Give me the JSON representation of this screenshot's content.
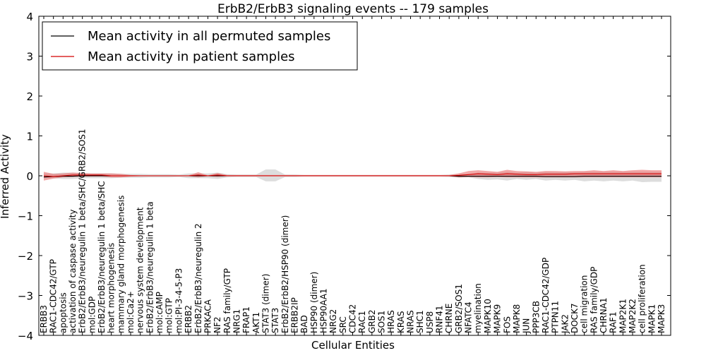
{
  "chart_data": {
    "type": "line",
    "title": "ErbB2/ErbB3 signaling events -- 179 samples",
    "xlabel": "Cellular Entities",
    "ylabel": "Inferred Activity",
    "ylim": [
      -4,
      4
    ],
    "yticks": [
      -4,
      -3,
      -2,
      -1,
      0,
      1,
      2,
      3,
      4
    ],
    "ytick_labels": [
      "−4",
      "−3",
      "−2",
      "−1",
      "0",
      "1",
      "2",
      "3",
      "4"
    ],
    "legend_position": "top-left",
    "categories": [
      "ERBB3",
      "RAC1-CDC42/GTP",
      "apoptosis",
      "activation of caspase activity",
      "ErbB2/ErbB3/neuregulin 1 beta/SHC/GRB2/SOS1",
      "mol:GDP",
      "ErbB2/ErbB3/neuregulin 1 beta/SHC",
      "heart morphogenesis",
      "mammary gland morphogenesis",
      "mol:Ca2+",
      "nervous system development",
      "ErbB2/ErbB3/neuregulin 1 beta",
      "mol:cAMP",
      "mol:GTP",
      "mol:PI-3-4-5-P3",
      "ERBB2",
      "ErbB2/ErbB3/neuregulin 2",
      "PRKACA",
      "NF2",
      "RAS family/GTP",
      "NRG1",
      "FRAP1",
      "AKT1",
      "STAT3 (dimer)",
      "STAT3",
      "ErbB2/ErbB2/HSP90 (dimer)",
      "ERBB2IP",
      "BAD",
      "HSP90 (dimer)",
      "HSP90AA1",
      "NRG2",
      "SRC",
      "CDC42",
      "RAC1",
      "GRB2",
      "SOS1",
      "HRAS",
      "KRAS",
      "NRAS",
      "SHC1",
      "USP8",
      "RNF41",
      "CHRNE",
      "GRB2/SOS1",
      "NFATC4",
      "myelination",
      "MAPK10",
      "MAPK9",
      "FOS",
      "MAPK8",
      "JUN",
      "PPP3CB",
      "RAC1-CDC42/GDP",
      "PTPN11",
      "JAK2",
      "DOCK7",
      "cell migration",
      "RAS family/GDP",
      "CHRNA1",
      "RAF1",
      "MAP2K1",
      "MAP2K2",
      "cell proliferation",
      "MAPK1",
      "MAPK3"
    ],
    "series": [
      {
        "name": "Mean activity in all permuted samples",
        "color": "#000000",
        "values": [
          -0.03,
          -0.02,
          -0.01,
          -0.01,
          0.0,
          0.0,
          0.0,
          0.0,
          0.0,
          0.0,
          0.0,
          0.0,
          0.0,
          0.0,
          0.0,
          0.0,
          0.0,
          0.0,
          0.0,
          0.0,
          0.0,
          0.0,
          0.0,
          0.0,
          0.0,
          0.0,
          0.0,
          0.0,
          0.0,
          0.0,
          0.0,
          0.0,
          0.0,
          0.0,
          0.0,
          0.0,
          0.0,
          0.0,
          0.0,
          0.0,
          0.0,
          0.0,
          0.0,
          -0.01,
          -0.01,
          -0.01,
          -0.01,
          -0.01,
          -0.01,
          -0.01,
          -0.01,
          -0.01,
          -0.02,
          -0.02,
          -0.02,
          -0.02,
          -0.01,
          -0.01,
          -0.01,
          -0.01,
          -0.01,
          -0.01,
          -0.01,
          -0.01,
          -0.01
        ],
        "band_low": [
          -0.06,
          -0.06,
          -0.08,
          -0.08,
          -0.06,
          -0.06,
          -0.06,
          -0.06,
          -0.05,
          -0.05,
          -0.05,
          -0.04,
          -0.04,
          -0.04,
          -0.03,
          -0.06,
          -0.06,
          -0.06,
          -0.08,
          -0.04,
          -0.03,
          -0.03,
          -0.03,
          -0.14,
          -0.14,
          -0.03,
          -0.03,
          -0.02,
          -0.02,
          -0.02,
          -0.02,
          -0.02,
          -0.02,
          -0.02,
          -0.02,
          -0.02,
          -0.02,
          -0.02,
          -0.02,
          -0.02,
          -0.02,
          -0.02,
          -0.03,
          -0.05,
          -0.04,
          -0.08,
          -0.1,
          -0.09,
          -0.12,
          -0.08,
          -0.1,
          -0.08,
          -0.12,
          -0.1,
          -0.12,
          -0.1,
          -0.14,
          -0.12,
          -0.14,
          -0.12,
          -0.14,
          -0.12,
          -0.16,
          -0.15,
          -0.15
        ],
        "band_high": [
          0.06,
          0.06,
          0.08,
          0.08,
          0.06,
          0.06,
          0.06,
          0.06,
          0.05,
          0.05,
          0.05,
          0.04,
          0.04,
          0.04,
          0.03,
          0.06,
          0.06,
          0.06,
          0.08,
          0.04,
          0.03,
          0.03,
          0.03,
          0.16,
          0.16,
          0.03,
          0.03,
          0.02,
          0.02,
          0.02,
          0.02,
          0.02,
          0.02,
          0.02,
          0.02,
          0.02,
          0.02,
          0.02,
          0.02,
          0.02,
          0.02,
          0.02,
          0.03,
          0.05,
          0.04,
          0.08,
          0.08,
          0.08,
          0.1,
          0.08,
          0.1,
          0.08,
          0.1,
          0.09,
          0.1,
          0.09,
          0.1,
          0.1,
          0.1,
          0.1,
          0.1,
          0.1,
          0.1,
          0.1,
          0.1
        ]
      },
      {
        "name": "Mean activity in patient samples",
        "color": "#d40000",
        "values": [
          0.0,
          -0.02,
          0.0,
          0.02,
          0.02,
          0.02,
          0.02,
          0.0,
          0.0,
          0.0,
          0.0,
          0.0,
          0.0,
          0.0,
          0.0,
          0.0,
          0.02,
          0.0,
          0.02,
          0.0,
          0.0,
          0.0,
          0.0,
          0.0,
          0.0,
          0.0,
          0.0,
          0.0,
          0.0,
          0.0,
          0.0,
          0.0,
          0.0,
          0.0,
          0.0,
          0.0,
          0.0,
          0.0,
          0.0,
          0.0,
          0.0,
          0.0,
          0.0,
          0.01,
          0.03,
          0.05,
          0.04,
          0.03,
          0.05,
          0.04,
          0.03,
          0.03,
          0.04,
          0.04,
          0.04,
          0.05,
          0.05,
          0.05,
          0.05,
          0.05,
          0.05,
          0.05,
          0.05,
          0.05,
          0.05
        ],
        "band_low": [
          -0.12,
          -0.07,
          -0.04,
          -0.03,
          -0.02,
          -0.02,
          -0.02,
          -0.04,
          -0.04,
          -0.02,
          -0.01,
          -0.01,
          -0.01,
          -0.01,
          -0.01,
          -0.01,
          -0.04,
          -0.01,
          -0.03,
          -0.01,
          -0.01,
          -0.01,
          -0.01,
          -0.01,
          -0.01,
          -0.01,
          -0.01,
          -0.01,
          -0.01,
          -0.01,
          -0.01,
          -0.01,
          -0.01,
          -0.01,
          -0.01,
          -0.01,
          -0.01,
          -0.01,
          -0.01,
          -0.01,
          -0.01,
          -0.01,
          -0.01,
          -0.04,
          -0.03,
          -0.04,
          -0.04,
          -0.03,
          -0.04,
          -0.04,
          -0.04,
          -0.04,
          -0.04,
          -0.04,
          -0.04,
          -0.04,
          -0.04,
          -0.04,
          -0.04,
          -0.04,
          -0.04,
          -0.04,
          -0.04,
          -0.04,
          -0.04
        ],
        "band_high": [
          0.1,
          0.05,
          0.06,
          0.08,
          0.07,
          0.06,
          0.06,
          0.06,
          0.05,
          0.02,
          0.01,
          0.01,
          0.01,
          0.01,
          0.01,
          0.01,
          0.09,
          0.01,
          0.07,
          0.02,
          0.02,
          0.02,
          0.02,
          0.02,
          0.02,
          0.02,
          0.02,
          0.02,
          0.02,
          0.02,
          0.02,
          0.02,
          0.02,
          0.02,
          0.02,
          0.02,
          0.02,
          0.02,
          0.02,
          0.02,
          0.02,
          0.02,
          0.02,
          0.06,
          0.12,
          0.14,
          0.12,
          0.1,
          0.15,
          0.12,
          0.11,
          0.1,
          0.12,
          0.12,
          0.11,
          0.12,
          0.12,
          0.14,
          0.12,
          0.14,
          0.12,
          0.14,
          0.15,
          0.14,
          0.14
        ]
      }
    ],
    "colors": {
      "permuted_line": "#000000",
      "permuted_band": "#b4b4b4",
      "patient_line": "#d40000",
      "patient_band": "#e86060"
    }
  }
}
